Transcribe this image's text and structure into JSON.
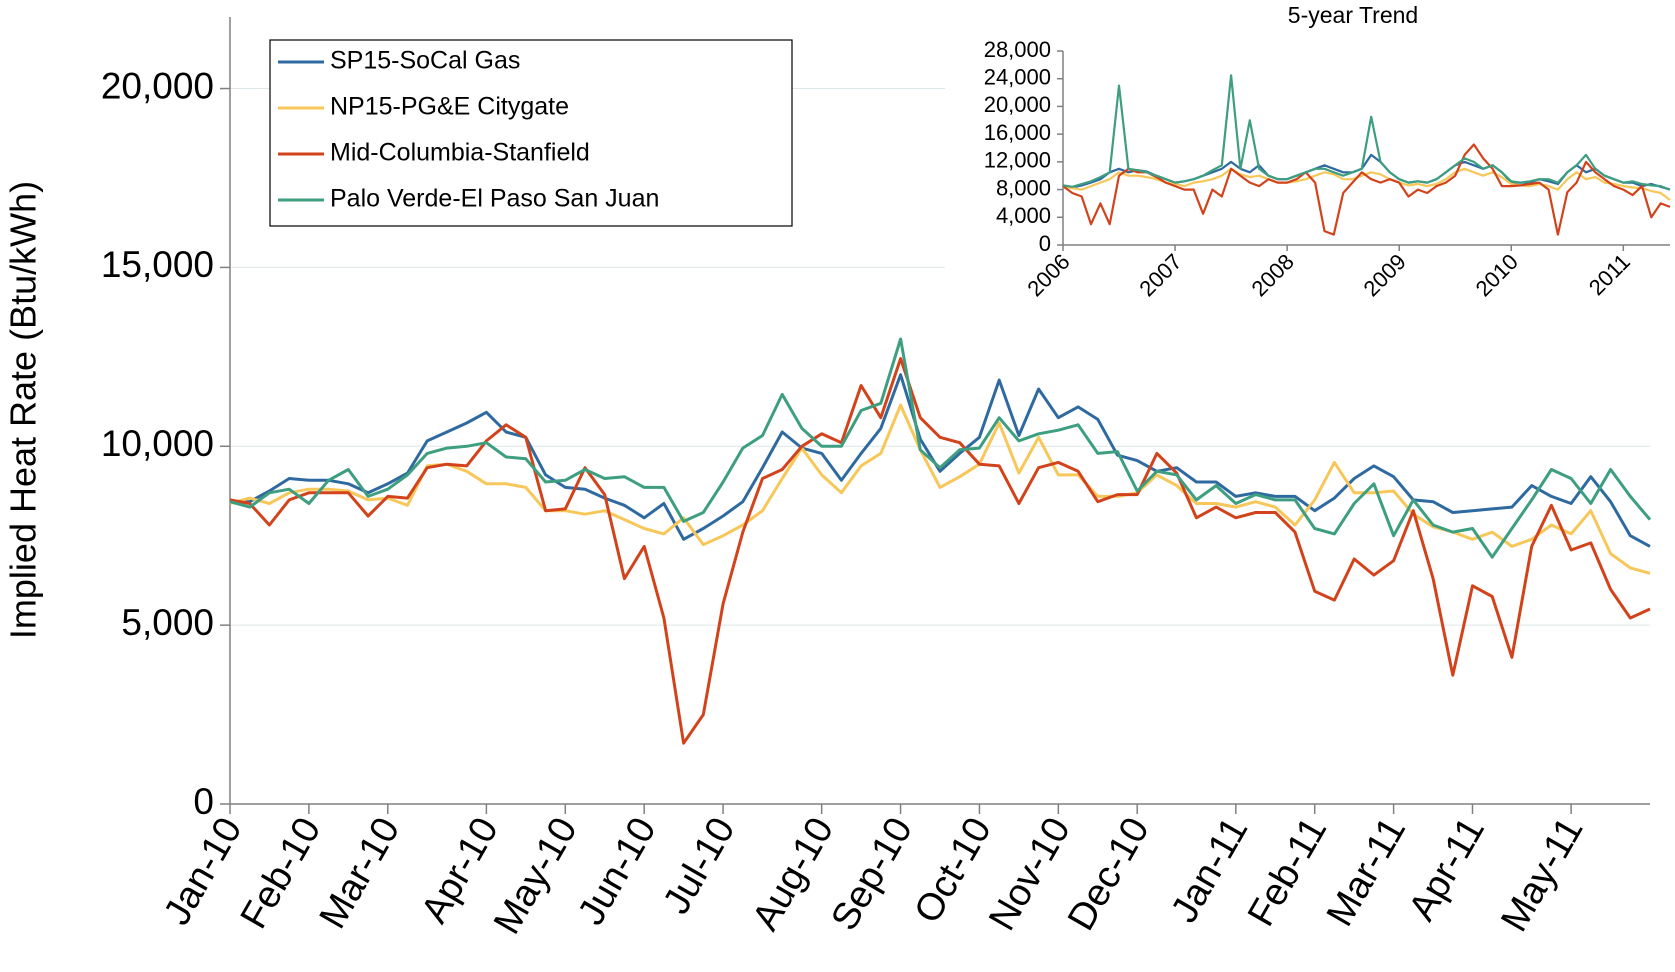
{
  "chart_data": [
    {
      "type": "line",
      "y_label": "Implied Heat Rate (Btu/kWh)",
      "categories": [
        "Jan-10",
        null,
        null,
        null,
        "Feb-10",
        null,
        null,
        null,
        "Mar-10",
        null,
        null,
        null,
        null,
        "Apr-10",
        null,
        null,
        null,
        "May-10",
        null,
        null,
        null,
        "Jun-10",
        null,
        null,
        null,
        "Jul-10",
        null,
        null,
        null,
        null,
        "Aug-10",
        null,
        null,
        null,
        "Sep-10",
        null,
        null,
        null,
        "Oct-10",
        null,
        null,
        null,
        "Nov-10",
        null,
        null,
        null,
        "Dec-10",
        null,
        null,
        null,
        null,
        "Jan-11",
        null,
        null,
        null,
        "Feb-11",
        null,
        null,
        null,
        "Mar-11",
        null,
        null,
        null,
        "Apr-11",
        null,
        null,
        null,
        null,
        "May-11",
        null,
        null,
        null,
        null
      ],
      "series": [
        {
          "name": "SP15-SoCal Gas",
          "color": "#2e6aa0",
          "values": [
            8450,
            8450,
            8750,
            9100,
            9050,
            9050,
            8950,
            8700,
            8950,
            9250,
            10150,
            10400,
            10650,
            10950,
            10400,
            10250,
            9200,
            8850,
            8800,
            8550,
            8350,
            8000,
            8400,
            7400,
            7700,
            8050,
            8450,
            9400,
            10400,
            9950,
            9800,
            9050,
            9800,
            10500,
            12000,
            10200,
            9300,
            9800,
            10250,
            11850,
            10300,
            11600,
            10800,
            11100,
            10750,
            9750,
            9600,
            9300,
            9400,
            9000,
            9000,
            8600,
            8700,
            8600,
            8600,
            8200,
            8550,
            9100,
            9450,
            9150,
            8500,
            8450,
            8150,
            8200,
            8250,
            8300,
            8900,
            8600,
            8400,
            9150,
            8450,
            7500,
            7200
          ]
        },
        {
          "name": "NP15-PG&E Citygate",
          "color": "#f7c75a",
          "values": [
            8400,
            8550,
            8400,
            8700,
            8800,
            8800,
            8750,
            8500,
            8550,
            8350,
            9450,
            9500,
            9300,
            8950,
            8950,
            8850,
            8200,
            8200,
            8100,
            8200,
            7950,
            7700,
            7550,
            8000,
            7250,
            7500,
            7800,
            8200,
            9100,
            9950,
            9200,
            8700,
            9450,
            9800,
            11150,
            9900,
            8850,
            9150,
            9500,
            10650,
            9250,
            10250,
            9200,
            9200,
            8600,
            8600,
            8700,
            9200,
            8900,
            8400,
            8400,
            8300,
            8450,
            8300,
            7800,
            8500,
            9550,
            8700,
            8700,
            8750,
            8100,
            7750,
            7600,
            7400,
            7600,
            7200,
            7400,
            7800,
            7550,
            8200,
            7000,
            6600,
            6450
          ]
        },
        {
          "name": "Mid-Columbia-Stanfield",
          "color": "#d2431c",
          "values": [
            8500,
            8400,
            7800,
            8500,
            8700,
            8700,
            8700,
            8050,
            8600,
            8550,
            9400,
            9500,
            9450,
            10150,
            10600,
            10250,
            8200,
            8250,
            9400,
            8650,
            6300,
            7200,
            5200,
            1700,
            2500,
            5600,
            7600,
            9100,
            9350,
            10000,
            10350,
            10100,
            11700,
            10800,
            12450,
            10800,
            10250,
            10100,
            9500,
            9450,
            8400,
            9400,
            9550,
            9300,
            8450,
            8650,
            8650,
            9800,
            9250,
            8000,
            8300,
            8000,
            8150,
            8150,
            7600,
            5950,
            5700,
            6850,
            6400,
            6800,
            8200,
            6300,
            3600,
            6100,
            5800,
            4100,
            7200,
            8350,
            7100,
            7300,
            6000,
            5200,
            5450
          ]
        },
        {
          "name": "Palo Verde-El Paso San Juan",
          "color": "#3d9e80",
          "values": [
            8450,
            8300,
            8700,
            8800,
            8400,
            9050,
            9350,
            8600,
            8800,
            9200,
            9800,
            9950,
            10000,
            10100,
            9700,
            9650,
            9000,
            9050,
            9350,
            9100,
            9150,
            8850,
            8850,
            7900,
            8150,
            9000,
            9950,
            10300,
            11450,
            10500,
            10000,
            10000,
            11000,
            11200,
            13000,
            9900,
            9400,
            9900,
            9950,
            10800,
            10150,
            10350,
            10450,
            10600,
            9800,
            9850,
            8750,
            9300,
            9200,
            8500,
            8900,
            8400,
            8650,
            8500,
            8500,
            7700,
            7550,
            8400,
            8950,
            7500,
            8500,
            7800,
            7600,
            7700,
            6900,
            7700,
            8500,
            9350,
            9100,
            8400,
            9350,
            8600,
            7950
          ]
        }
      ],
      "ylim": [
        0,
        22000
      ],
      "yticks": [
        0,
        {
          "value": 5000,
          "label": "5,000"
        },
        {
          "value": 10000,
          "label": "10,000"
        },
        {
          "value": 15000,
          "label": "15,000"
        },
        {
          "value": 20000,
          "label": "20,000"
        }
      ],
      "grid": true,
      "legend": "top-left"
    },
    {
      "type": "line",
      "title": "5-year Trend",
      "categories": [
        "2006",
        null,
        null,
        null,
        null,
        null,
        null,
        null,
        null,
        null,
        null,
        null,
        "2007",
        null,
        null,
        null,
        null,
        null,
        null,
        null,
        null,
        null,
        null,
        null,
        "2008",
        null,
        null,
        null,
        null,
        null,
        null,
        null,
        null,
        null,
        null,
        null,
        "2009",
        null,
        null,
        null,
        null,
        null,
        null,
        null,
        null,
        null,
        null,
        null,
        "2010",
        null,
        null,
        null,
        null,
        null,
        null,
        null,
        null,
        null,
        null,
        null,
        "2011",
        null,
        null,
        null,
        null,
        null
      ],
      "series": [
        {
          "color": "#2e6aa0",
          "values": [
            8500,
            8300,
            8600,
            9000,
            9500,
            10500,
            11000,
            10500,
            10800,
            10600,
            10000,
            9500,
            9000,
            9200,
            9500,
            10000,
            10500,
            11000,
            12000,
            11000,
            10500,
            11500,
            10000,
            9500,
            9500,
            10000,
            10500,
            11000,
            11500,
            11000,
            10500,
            10500,
            11000,
            13000,
            12000,
            10500,
            9500,
            9000,
            9200,
            9000,
            9500,
            10500,
            11500,
            12000,
            11500,
            11000,
            11500,
            10500,
            9000,
            9000,
            9000,
            9500,
            9200,
            8800,
            10500,
            11500,
            10500,
            11000,
            10000,
            9500,
            9000,
            9000,
            8500,
            8800,
            8400,
            8000
          ]
        },
        {
          "color": "#f7c75a",
          "values": [
            8400,
            8200,
            8000,
            8500,
            9000,
            9500,
            10500,
            10000,
            10000,
            9800,
            9500,
            9000,
            8800,
            8500,
            9000,
            9200,
            9500,
            10000,
            11000,
            10200,
            9800,
            10000,
            9500,
            9000,
            9000,
            9200,
            9500,
            10000,
            10500,
            10200,
            9500,
            9500,
            10000,
            10500,
            10200,
            9500,
            9000,
            8600,
            8800,
            8500,
            8800,
            9500,
            10500,
            11000,
            10500,
            10000,
            10500,
            9800,
            8800,
            8600,
            8500,
            8800,
            8500,
            8000,
            9500,
            10500,
            9500,
            9800,
            9000,
            8800,
            8500,
            8300,
            8200,
            7800,
            7500,
            6500
          ]
        },
        {
          "color": "#d2431c",
          "values": [
            8500,
            7500,
            7000,
            3000,
            6000,
            3000,
            10000,
            11000,
            10500,
            10500,
            9800,
            9000,
            8500,
            8000,
            8000,
            4500,
            8000,
            7000,
            11000,
            10000,
            9000,
            8500,
            9500,
            9000,
            9000,
            9500,
            10500,
            9000,
            2000,
            1500,
            7500,
            9000,
            10500,
            9500,
            9000,
            9500,
            9000,
            7000,
            8000,
            7500,
            8500,
            9000,
            10000,
            13000,
            14500,
            12500,
            11000,
            8500,
            8500,
            8600,
            8800,
            9000,
            8000,
            1500,
            7600,
            9000,
            12000,
            10500,
            9500,
            8500,
            8000,
            7200,
            8500,
            4000,
            6000,
            5500
          ]
        },
        {
          "color": "#3d9e80",
          "values": [
            8600,
            8400,
            8800,
            9200,
            9800,
            10500,
            23000,
            11000,
            10800,
            10500,
            10000,
            9500,
            9000,
            9200,
            9500,
            10000,
            10800,
            11500,
            24500,
            11000,
            18000,
            11000,
            10000,
            9500,
            9500,
            10000,
            10500,
            11000,
            11000,
            10500,
            10000,
            10500,
            11000,
            18500,
            12000,
            10500,
            9500,
            9000,
            9200,
            9000,
            9500,
            10500,
            11500,
            12500,
            12000,
            11000,
            11500,
            10500,
            9200,
            9000,
            9200,
            9500,
            9500,
            9000,
            10500,
            11500,
            13000,
            11000,
            10000,
            9500,
            9000,
            9200,
            8800,
            8600,
            8500,
            8000
          ]
        }
      ],
      "ylim": [
        0,
        28000
      ],
      "yticks": [
        0,
        {
          "value": 4000,
          "label": "4,000"
        },
        {
          "value": 8000,
          "label": "8,000"
        },
        {
          "value": 12000,
          "label": "12,000"
        },
        {
          "value": 16000,
          "label": "16,000"
        },
        {
          "value": 20000,
          "label": "20,000"
        },
        {
          "value": 24000,
          "label": "24,000"
        },
        {
          "value": 28000,
          "label": "28,000"
        }
      ],
      "grid": false
    }
  ]
}
